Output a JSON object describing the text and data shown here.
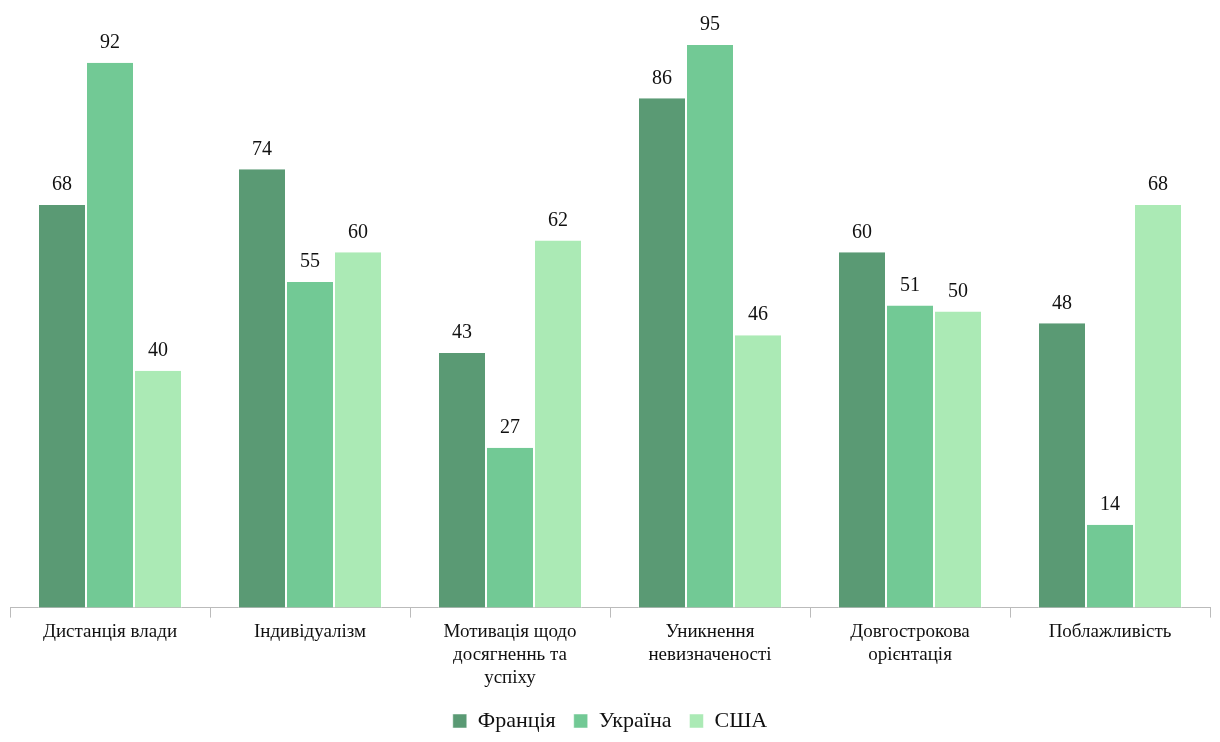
{
  "chart_data": {
    "type": "bar",
    "categories": [
      "Дистанція влади",
      "Індивідуалізм",
      "Мотивація щодо досягненнь та успіху",
      "Уникнення невизначеності",
      "Довгострокова орієнтація",
      "Поблажливість"
    ],
    "series": [
      {
        "name": "Франція",
        "color": "#5a9a74",
        "values": [
          68,
          74,
          43,
          86,
          60,
          48
        ]
      },
      {
        "name": "Україна",
        "color": "#72c995",
        "values": [
          92,
          55,
          27,
          95,
          51,
          14
        ]
      },
      {
        "name": "США",
        "color": "#abeab5",
        "values": [
          40,
          60,
          62,
          46,
          50,
          68
        ]
      }
    ],
    "data_labels": true,
    "legend": "bottom",
    "tick_labels": "x"
  }
}
